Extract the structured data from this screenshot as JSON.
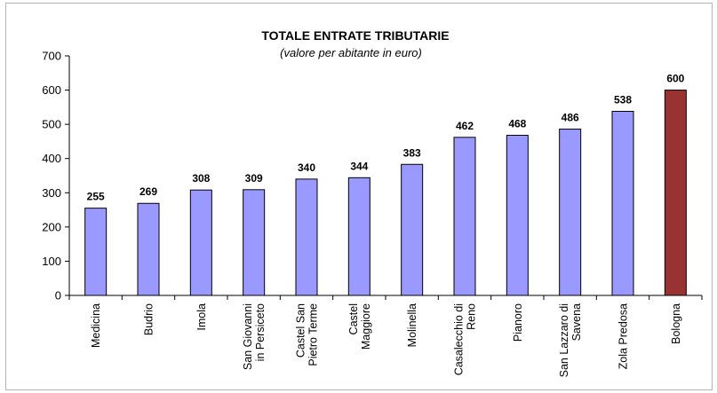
{
  "chart_data": {
    "type": "bar",
    "title": "TOTALE ENTRATE TRIBUTARIE",
    "subtitle": "(valore per abitante in euro)",
    "xlabel": "",
    "ylabel": "",
    "ylim": [
      0,
      700
    ],
    "yticks": [
      "0",
      "100",
      "200",
      "300",
      "400",
      "500",
      "600",
      "700"
    ],
    "categories": [
      [
        "Medicina"
      ],
      [
        "Budrio"
      ],
      [
        "Imola"
      ],
      [
        "San Giovanni",
        "in Persiceto"
      ],
      [
        "Castel San",
        "Pietro Terme"
      ],
      [
        "Castel",
        "Maggiore"
      ],
      [
        "Molinella"
      ],
      [
        "Casalecchio di",
        "Reno"
      ],
      [
        "Pianoro"
      ],
      [
        "San Lazzaro di",
        "Savena"
      ],
      [
        "Zola Predosa"
      ],
      [
        "Bologna"
      ]
    ],
    "values": [
      255,
      269,
      308,
      309,
      340,
      344,
      383,
      462,
      468,
      486,
      538,
      600
    ],
    "data_labels": [
      "255",
      "269",
      "308",
      "309",
      "340",
      "344",
      "383",
      "462",
      "468",
      "486",
      "538",
      "600"
    ],
    "bar_colors": [
      "#9999ff",
      "#9999ff",
      "#9999ff",
      "#9999ff",
      "#9999ff",
      "#9999ff",
      "#9999ff",
      "#9999ff",
      "#9999ff",
      "#9999ff",
      "#9999ff",
      "#993333"
    ],
    "grid": false,
    "legend": "none"
  }
}
